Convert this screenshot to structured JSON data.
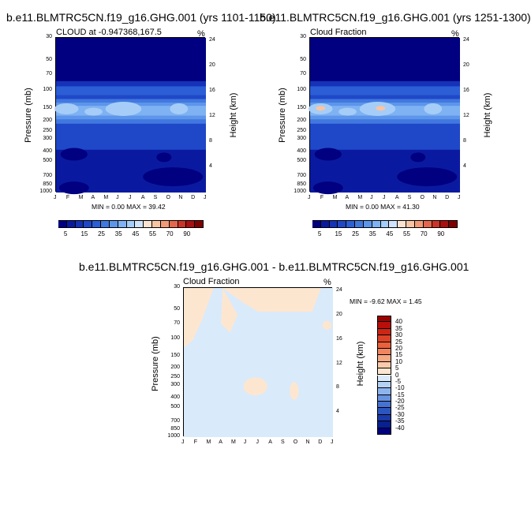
{
  "chart_data": [
    {
      "type": "heatmap",
      "title": "b.e11.BLMTRC5CN.f19_g16.GHG.001 (yrs 1101-1150)",
      "subtitle_left": "CLOUD at -0.947368,167.5",
      "subtitle_right": "%",
      "ylabel_left": "Pressure (mb)",
      "ylabel_right": "Height (km)",
      "x_ticks": [
        "J",
        "F",
        "M",
        "A",
        "M",
        "J",
        "J",
        "A",
        "S",
        "O",
        "N",
        "D",
        "J"
      ],
      "pressure_ticks": [
        "30",
        "50",
        "70",
        "100",
        "150",
        "200",
        "250",
        "300",
        "400",
        "500",
        "700",
        "850",
        "1000"
      ],
      "pressure_values": [
        30,
        50,
        70,
        100,
        150,
        200,
        250,
        300,
        400,
        500,
        700,
        850,
        1000
      ],
      "height_ticks": [
        "24",
        "20",
        "16",
        "12",
        "8",
        "4"
      ],
      "stats": "MIN =  0.00 MAX =  39.42",
      "min": 0.0,
      "max": 39.42,
      "colorbar_labels": [
        "5",
        "15",
        "25",
        "35",
        "45",
        "55",
        "70",
        "90"
      ]
    },
    {
      "type": "heatmap",
      "title": "b.e11.BLMTRC5CN.f19_g16.GHG.001 (yrs 1251-1300)",
      "subtitle_left": "Cloud Fraction",
      "subtitle_right": "%",
      "ylabel_left": "Pressure (mb)",
      "ylabel_right": "Height (km)",
      "x_ticks": [
        "J",
        "F",
        "M",
        "A",
        "M",
        "J",
        "J",
        "A",
        "S",
        "O",
        "N",
        "D",
        "J"
      ],
      "pressure_ticks": [
        "30",
        "50",
        "70",
        "100",
        "150",
        "200",
        "250",
        "300",
        "400",
        "500",
        "700",
        "850",
        "1000"
      ],
      "pressure_values": [
        30,
        50,
        70,
        100,
        150,
        200,
        250,
        300,
        400,
        500,
        700,
        850,
        1000
      ],
      "height_ticks": [
        "24",
        "20",
        "16",
        "12",
        "8",
        "4"
      ],
      "stats": "MIN =  0.00 MAX =  41.30",
      "min": 0.0,
      "max": 41.3,
      "colorbar_labels": [
        "5",
        "15",
        "25",
        "35",
        "45",
        "55",
        "70",
        "90"
      ]
    },
    {
      "type": "heatmap",
      "title": "b.e11.BLMTRC5CN.f19_g16.GHG.001 - b.e11.BLMTRC5CN.f19_g16.GHG.001",
      "subtitle_left": "Cloud Fraction",
      "subtitle_right": "%",
      "ylabel_left": "Pressure (mb)",
      "ylabel_right": "Height (km)",
      "x_ticks": [
        "J",
        "F",
        "M",
        "A",
        "M",
        "J",
        "J",
        "A",
        "S",
        "O",
        "N",
        "D",
        "J"
      ],
      "pressure_ticks": [
        "30",
        "50",
        "70",
        "100",
        "150",
        "200",
        "250",
        "300",
        "400",
        "500",
        "700",
        "850",
        "1000"
      ],
      "pressure_values": [
        30,
        50,
        70,
        100,
        150,
        200,
        250,
        300,
        400,
        500,
        700,
        850,
        1000
      ],
      "height_ticks": [
        "24",
        "20",
        "16",
        "12",
        "8",
        "4"
      ],
      "stats": "MIN =  -9.62 MAX =   1.45",
      "min": -9.62,
      "max": 1.45,
      "colorbar_labels": [
        "40",
        "35",
        "30",
        "25",
        "20",
        "15",
        "10",
        "5",
        "0",
        "-5",
        "-10",
        "-15",
        "-20",
        "-25",
        "-30",
        "-35",
        "-40"
      ]
    }
  ],
  "palette": {
    "abs_colors": [
      "#000080",
      "#0a1aa0",
      "#1433b8",
      "#1f48c8",
      "#2c5ed6",
      "#4178e0",
      "#5d95ea",
      "#7eb2f2",
      "#a6cdf7",
      "#cfe4fb",
      "#fbe3cf",
      "#f8c4a4",
      "#f29a78",
      "#e4664c",
      "#cd3226",
      "#a80f10",
      "#800000"
    ],
    "diff_colors": [
      "#9e0000",
      "#b80f0a",
      "#cc2616",
      "#dc4226",
      "#e8623e",
      "#f08560",
      "#f5a985",
      "#f8cbab",
      "#fde6d0",
      "#d9eafb",
      "#b5d2f5",
      "#8db4ec",
      "#6893e0",
      "#4673d2",
      "#2d55c0",
      "#1a3aa8",
      "#0a1f90",
      "#000080"
    ],
    "frame": "#000000"
  }
}
